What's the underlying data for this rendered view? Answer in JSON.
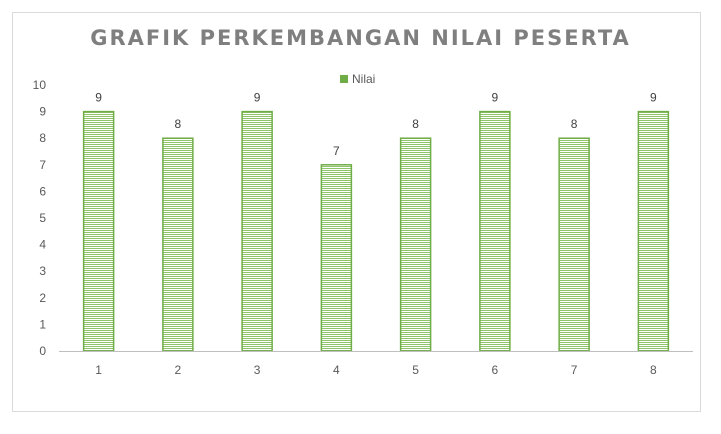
{
  "chart_data": {
    "type": "bar",
    "title": "GRAFIK PERKEMBANGAN NILAI PESERTA",
    "categories": [
      "1",
      "2",
      "3",
      "4",
      "5",
      "6",
      "7",
      "8"
    ],
    "series": [
      {
        "name": "Nilai",
        "values": [
          9,
          8,
          9,
          7,
          8,
          9,
          8,
          9
        ],
        "color": "#70ad47"
      }
    ],
    "xlabel": "",
    "ylabel": "",
    "ylim": [
      0,
      10
    ],
    "yticks": [
      "0",
      "1",
      "2",
      "3",
      "4",
      "5",
      "6",
      "7",
      "8",
      "9",
      "10"
    ],
    "grid": false,
    "legend_position": "top",
    "data_labels": true
  }
}
